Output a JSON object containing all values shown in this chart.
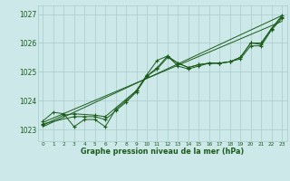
{
  "title": "Graphe pression niveau de la mer (hPa)",
  "bg_color": "#cde8e8",
  "grid_color": "#aacccc",
  "line_color": "#1a5c1a",
  "xlim": [
    -0.5,
    23.5
  ],
  "ylim": [
    1022.6,
    1027.3
  ],
  "xticks": [
    0,
    1,
    2,
    3,
    4,
    5,
    6,
    7,
    8,
    9,
    10,
    11,
    12,
    13,
    14,
    15,
    16,
    17,
    18,
    19,
    20,
    21,
    22,
    23
  ],
  "yticks": [
    1023,
    1024,
    1025,
    1026,
    1027
  ],
  "series1_x": [
    0,
    1,
    2,
    3,
    4,
    5,
    6,
    7,
    8,
    9,
    10,
    11,
    12,
    13,
    14,
    15,
    16,
    17,
    18,
    19,
    20,
    21,
    22,
    23
  ],
  "series1_y": [
    1023.3,
    1023.6,
    1023.55,
    1023.1,
    1023.35,
    1023.35,
    1023.1,
    1023.7,
    1024.0,
    1024.35,
    1024.9,
    1025.4,
    1025.55,
    1025.3,
    1025.15,
    1025.25,
    1025.3,
    1025.3,
    1025.35,
    1025.5,
    1026.0,
    1025.95,
    1026.5,
    1026.9
  ],
  "series2_x": [
    0,
    2,
    3,
    5,
    6,
    9,
    10,
    11,
    12,
    13,
    14,
    15,
    16,
    17,
    18,
    19,
    20,
    21,
    22,
    23
  ],
  "series2_y": [
    1023.15,
    1023.5,
    1023.55,
    1023.5,
    1023.45,
    1024.35,
    1024.85,
    1025.15,
    1025.55,
    1025.2,
    1025.1,
    1025.2,
    1025.3,
    1025.3,
    1025.35,
    1025.45,
    1025.9,
    1025.9,
    1026.45,
    1026.85
  ],
  "series3_x": [
    0,
    3,
    4,
    5,
    6,
    7,
    8,
    9,
    10,
    11,
    12,
    13,
    14,
    15,
    16,
    17,
    18,
    19,
    20,
    21,
    22,
    23
  ],
  "series3_y": [
    1023.2,
    1023.45,
    1023.45,
    1023.45,
    1023.35,
    1023.65,
    1023.95,
    1024.3,
    1024.85,
    1025.1,
    1025.5,
    1025.3,
    1025.15,
    1025.25,
    1025.3,
    1025.3,
    1025.35,
    1025.5,
    1026.0,
    1026.0,
    1026.5,
    1026.95
  ],
  "trend1_x": [
    0,
    23
  ],
  "trend1_y": [
    1023.1,
    1026.95
  ],
  "trend2_x": [
    0,
    23
  ],
  "trend2_y": [
    1023.25,
    1026.75
  ]
}
